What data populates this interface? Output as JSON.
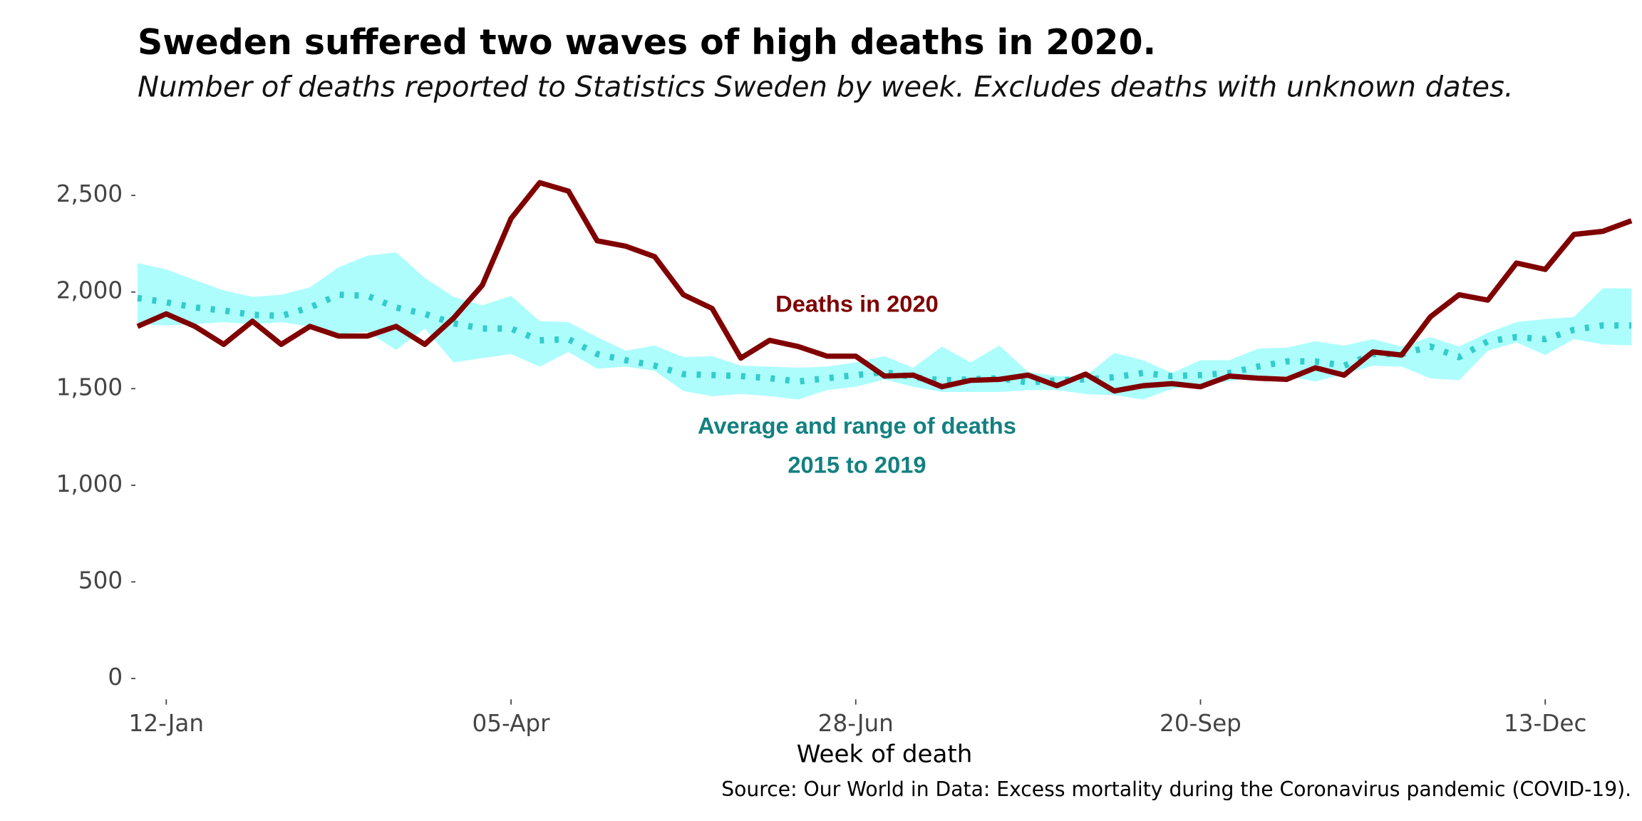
{
  "chart_data": {
    "type": "line",
    "title": "Sweden suffered two waves of high deaths in 2020.",
    "subtitle": "Number of deaths reported to Statistics Sweden by week. Excludes deaths with unknown dates.",
    "x_label": "Week of death",
    "caption": "Source: Our World in Data: Excess mortality during the Coronavirus pandemic (COVID-19).",
    "categories": [
      null,
      "12-Jan",
      null,
      null,
      null,
      null,
      null,
      null,
      null,
      null,
      null,
      null,
      null,
      "05-Apr",
      null,
      null,
      null,
      null,
      null,
      null,
      null,
      null,
      null,
      null,
      null,
      "28-Jun",
      null,
      null,
      null,
      null,
      null,
      null,
      null,
      null,
      null,
      null,
      null,
      "20-Sep",
      null,
      null,
      null,
      null,
      null,
      null,
      null,
      null,
      null,
      null,
      null,
      "13-Dec",
      null,
      null,
      null
    ],
    "series": [
      {
        "name": "Deaths in 2020",
        "color": "#800000",
        "values": [
          1822,
          1887,
          1822,
          1729,
          1849,
          1729,
          1822,
          1772,
          1772,
          1822,
          1729,
          1865,
          2035,
          2380,
          2566,
          2522,
          2265,
          2237,
          2183,
          1986,
          1915,
          1658,
          1750,
          1718,
          1668,
          1668,
          1565,
          1570,
          1510,
          1543,
          1548,
          1570,
          1515,
          1575,
          1488,
          1515,
          1526,
          1510,
          1565,
          1554,
          1548,
          1608,
          1570,
          1690,
          1674,
          1871,
          1986,
          1958,
          2150,
          2117,
          2298,
          2314,
          2369
        ]
      },
      {
        "color": "#33cccc",
        "dotted": true,
        "band_color": "#adfdfd",
        "values": [
          1969,
          1947,
          1920,
          1904,
          1882,
          1876,
          1920,
          1986,
          1980,
          1920,
          1887,
          1838,
          1811,
          1811,
          1750,
          1756,
          1679,
          1647,
          1619,
          1575,
          1570,
          1565,
          1554,
          1537,
          1554,
          1570,
          1586,
          1559,
          1543,
          1548,
          1554,
          1532,
          1543,
          1548,
          1559,
          1581,
          1565,
          1570,
          1581,
          1614,
          1641,
          1641,
          1619,
          1679,
          1679,
          1718,
          1663,
          1745,
          1767,
          1756,
          1805,
          1827,
          1827
        ],
        "upper": [
          2150,
          2117,
          2062,
          2008,
          1975,
          1986,
          2024,
          2128,
          2188,
          2205,
          2073,
          1975,
          1931,
          1980,
          1849,
          1844,
          1767,
          1696,
          1723,
          1663,
          1668,
          1619,
          1614,
          1608,
          1614,
          1636,
          1668,
          1608,
          1718,
          1636,
          1723,
          1586,
          1565,
          1565,
          1685,
          1647,
          1581,
          1647,
          1647,
          1707,
          1712,
          1745,
          1723,
          1756,
          1718,
          1767,
          1718,
          1789,
          1844,
          1860,
          1871,
          2019,
          2019
        ],
        "lower": [
          1833,
          1827,
          1833,
          1844,
          1833,
          1844,
          1822,
          1783,
          1794,
          1701,
          1811,
          1636,
          1658,
          1679,
          1614,
          1690,
          1603,
          1614,
          1592,
          1488,
          1461,
          1472,
          1461,
          1444,
          1493,
          1510,
          1548,
          1510,
          1483,
          1483,
          1483,
          1493,
          1493,
          1472,
          1466,
          1444,
          1499,
          1521,
          1537,
          1565,
          1565,
          1537,
          1575,
          1619,
          1614,
          1554,
          1543,
          1696,
          1739,
          1674,
          1756,
          1729,
          1723
        ]
      }
    ],
    "annotations": [
      "Average and range of deaths",
      "2015 to 2019"
    ],
    "ylim": [
      -75,
      2690
    ],
    "yticks": [
      0,
      500,
      {
        "value": 1000,
        "label": "1,000"
      },
      {
        "value": 1500,
        "label": "1,500"
      },
      {
        "value": 2000,
        "label": "2,000"
      },
      {
        "value": 2500,
        "label": "2,500"
      }
    ],
    "grid": false
  }
}
